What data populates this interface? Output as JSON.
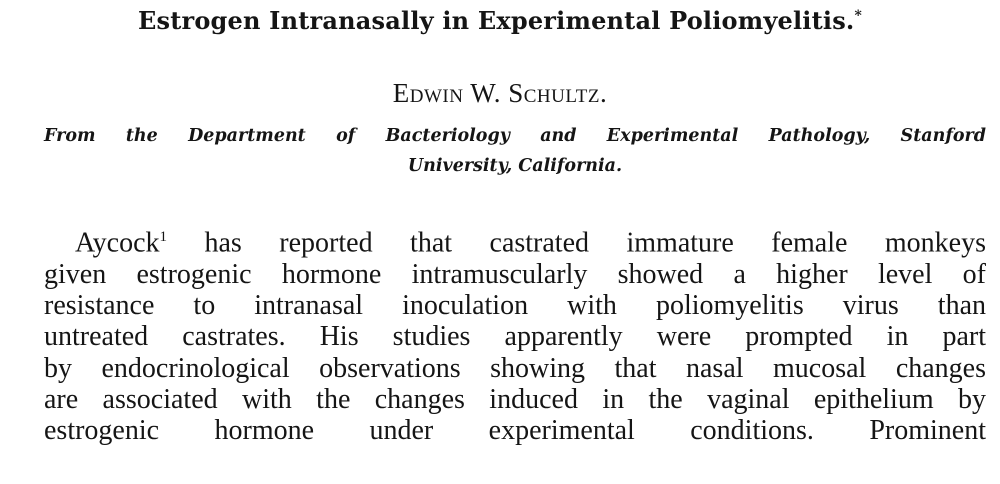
{
  "title": "Estrogen Intranasally in Experimental Poliomyelitis.",
  "title_footnote_mark": "*",
  "author": "Edwin W. Schultz.",
  "affiliation": {
    "line1": "From the Department of Bacteriology and Experimental Pathology, Stanford",
    "line2": "University, California."
  },
  "body": {
    "first_word": "Aycock",
    "reference_mark": "1",
    "lines": [
      " has reported that castrated immature female monkeys",
      "given estrogenic hormone intramuscularly showed a higher level of",
      "resistance to intranasal inoculation with poliomyelitis virus than",
      "untreated castrates.  His studies apparently were prompted in part",
      "by endocrinological observations showing that nasal mucosal changes",
      "are associated with the changes induced in the vaginal epithelium by",
      "estrogenic hormone under experimental conditions.  Prominent"
    ]
  }
}
